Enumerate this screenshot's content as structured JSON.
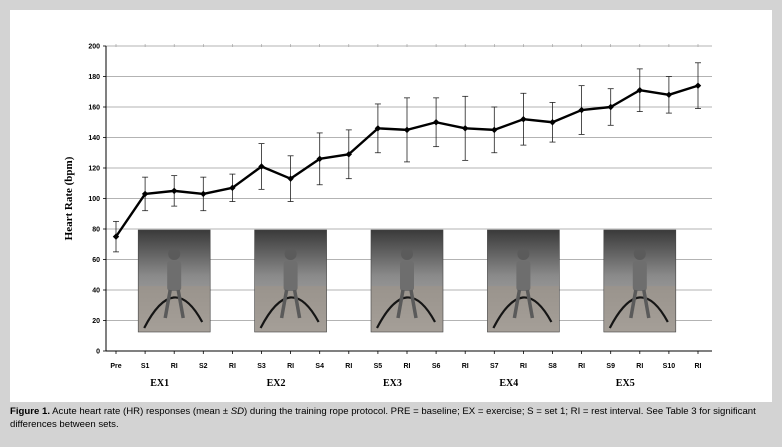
{
  "chart_data": {
    "type": "line",
    "ylabel": "Heart Rate (bpm)",
    "ylim": [
      0,
      200
    ],
    "yticks": [
      "0",
      "20",
      "40",
      "60",
      "80",
      "100",
      "120",
      "140",
      "160",
      "180",
      "200"
    ],
    "grid": true,
    "categories": [
      "Pre",
      "S1",
      "RI",
      "S2",
      "RI",
      "S3",
      "RI",
      "S4",
      "RI",
      "S5",
      "RI",
      "S6",
      "RI",
      "S7",
      "RI",
      "S8",
      "RI",
      "S9",
      "RI",
      "S10",
      "RI"
    ],
    "series": [
      {
        "values": [
          75,
          103,
          105,
          103,
          107,
          121,
          113,
          126,
          129,
          146,
          145,
          150,
          146,
          145,
          152,
          150,
          158,
          160,
          171,
          168,
          174
        ],
        "sd": [
          10,
          11,
          10,
          11,
          9,
          15,
          15,
          17,
          16,
          16,
          21,
          16,
          21,
          15,
          17,
          13,
          16,
          12,
          14,
          12,
          15
        ],
        "color": "#000000"
      }
    ],
    "groups": [
      {
        "label": "EX1",
        "center_index": 1.5
      },
      {
        "label": "EX2",
        "center_index": 5.5
      },
      {
        "label": "EX3",
        "center_index": 9.5
      },
      {
        "label": "EX4",
        "center_index": 13.5
      },
      {
        "label": "EX5",
        "center_index": 17.5
      }
    ]
  },
  "photos": [
    {
      "name": "photo-ex1",
      "center_index": 2
    },
    {
      "name": "photo-ex2",
      "center_index": 6
    },
    {
      "name": "photo-ex3",
      "center_index": 10
    },
    {
      "name": "photo-ex4",
      "center_index": 14
    },
    {
      "name": "photo-ex5",
      "center_index": 18
    }
  ],
  "caption": {
    "label": "Figure 1.",
    "text_before_sd": " Acute heart rate (HR) responses (mean ± ",
    "sd": "SD",
    "text_after_sd": ") during the training rope protocol. PRE = baseline; EX = exercise; S = set 1; RI = rest interval. See Table 3 for significant differences between sets."
  }
}
